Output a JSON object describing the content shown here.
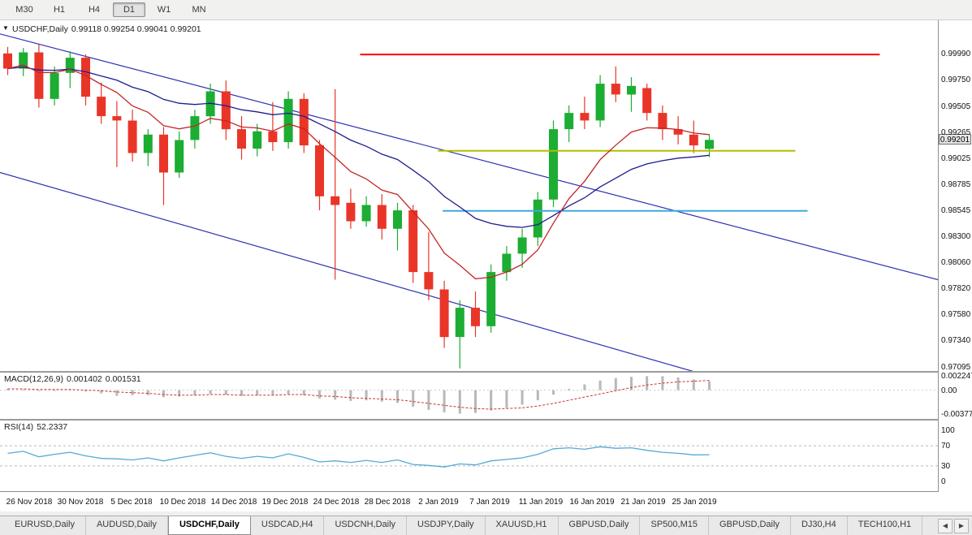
{
  "toolbar": {
    "timeframes": [
      "M30",
      "H1",
      "H4",
      "D1",
      "W1",
      "MN"
    ],
    "active": "D1"
  },
  "panes": {
    "price": {
      "collapse_icon": "▼",
      "title_symbol": "USDCHF,Daily",
      "title_ohlc": "0.99118 0.99254 0.99041 0.99201"
    },
    "macd": {
      "label": "MACD(12,26,9)",
      "value_main": "0.001402",
      "value_signal": "0.001531"
    },
    "rsi": {
      "label": "RSI(14)",
      "value": "52.2337"
    }
  },
  "price_axis": {
    "labels": [
      "0.99990",
      "0.99750",
      "0.99505",
      "0.99265",
      "0.99025",
      "0.98785",
      "0.98545",
      "0.98300",
      "0.98060",
      "0.97820",
      "0.97580",
      "0.97340",
      "0.97095"
    ],
    "current": "0.99201"
  },
  "date_axis": {
    "ticks": [
      "26 Nov 2018",
      "30 Nov 2018",
      "5 Dec 2018",
      "10 Dec 2018",
      "14 Dec 2018",
      "19 Dec 2018",
      "24 Dec 2018",
      "28 Dec 2018",
      "2 Jan 2019",
      "7 Jan 2019",
      "11 Jan 2019",
      "16 Jan 2019",
      "21 Jan 2019",
      "25 Jan 2019"
    ]
  },
  "tabs": {
    "items": [
      "EURUSD,Daily",
      "AUDUSD,Daily",
      "USDCHF,Daily",
      "USDCAD,H4",
      "USDCNH,Daily",
      "USDJPY,Daily",
      "XAUUSD,H1",
      "GBPUSD,Daily",
      "SP500,M15",
      "GBPUSD,Daily",
      "DJ30,H4",
      "TECH100,H1"
    ],
    "active_index": 2,
    "scroll_left": "◀",
    "scroll_right": "▶"
  },
  "colors": {
    "candle_up": "#1cad33",
    "candle_down": "#e93528",
    "macd_bar": "#b8b8b8",
    "macd_signal": "#cc3333",
    "rsi_line": "#56a8d6",
    "trendline": "#2d32b0",
    "ma_fast": "#c22525",
    "ma_slow": "#1c1c90",
    "hline_red": "#ff0000",
    "hline_olive": "#b3bd00",
    "hline_blue": "#3fa9dc"
  },
  "chart_data": [
    {
      "type": "candlestick",
      "title": "USDCHF,Daily",
      "ohlc_current": {
        "open": "0.99118",
        "high": "0.99254",
        "low": "0.99041",
        "close": "0.99201"
      },
      "price_range": [
        0.97066,
        1.00306
      ],
      "x_tick_labels": [
        "26 Nov 2018",
        "30 Nov 2018",
        "5 Dec 2018",
        "10 Dec 2018",
        "14 Dec 2018",
        "19 Dec 2018",
        "24 Dec 2018",
        "28 Dec 2018",
        "2 Jan 2019",
        "7 Jan 2019",
        "11 Jan 2019",
        "16 Jan 2019",
        "21 Jan 2019",
        "25 Jan 2019"
      ],
      "columns": [
        "date",
        "open",
        "high",
        "low",
        "close"
      ],
      "candles": [
        [
          "26 Nov",
          1.0,
          1.0006,
          0.998,
          0.9986
        ],
        [
          "27 Nov",
          0.9986,
          1.0005,
          0.9979,
          1.0001
        ],
        [
          "28 Nov",
          1.0001,
          1.0008,
          0.995,
          0.9958
        ],
        [
          "29 Nov",
          0.9958,
          0.9988,
          0.9952,
          0.9982
        ],
        [
          "30 Nov",
          0.9982,
          1.0002,
          0.9968,
          0.9996
        ],
        [
          "3 Dec",
          0.9996,
          0.9999,
          0.9952,
          0.996
        ],
        [
          "4 Dec",
          0.996,
          0.9973,
          0.9935,
          0.9942
        ],
        [
          "5 Dec",
          0.9942,
          0.9956,
          0.9895,
          0.9938
        ],
        [
          "6 Dec",
          0.9938,
          0.9948,
          0.99,
          0.9908
        ],
        [
          "7 Dec",
          0.9908,
          0.993,
          0.9896,
          0.9925
        ],
        [
          "10 Dec",
          0.9925,
          0.9932,
          0.986,
          0.989
        ],
        [
          "11 Dec",
          0.989,
          0.9928,
          0.9885,
          0.992
        ],
        [
          "12 Dec",
          0.992,
          0.9948,
          0.9912,
          0.9942
        ],
        [
          "13 Dec",
          0.9942,
          0.9972,
          0.9935,
          0.9965
        ],
        [
          "14 Dec",
          0.9965,
          0.9975,
          0.992,
          0.993
        ],
        [
          "17 Dec",
          0.993,
          0.9942,
          0.9902,
          0.9912
        ],
        [
          "18 Dec",
          0.9912,
          0.9935,
          0.9905,
          0.9928
        ],
        [
          "19 Dec",
          0.9928,
          0.9955,
          0.991,
          0.9918
        ],
        [
          "20 Dec",
          0.9918,
          0.9965,
          0.9912,
          0.9958
        ],
        [
          "21 Dec",
          0.9958,
          0.9963,
          0.9908,
          0.9915
        ],
        [
          "24 Dec",
          0.9915,
          0.992,
          0.9855,
          0.9868
        ],
        [
          "26 Dec",
          0.9868,
          0.9967,
          0.9791,
          0.986
        ],
        [
          "27 Dec",
          0.9862,
          0.9875,
          0.9838,
          0.9845
        ],
        [
          "28 Dec",
          0.9845,
          0.9868,
          0.984,
          0.986
        ],
        [
          "31 Dec",
          0.986,
          0.987,
          0.9828,
          0.9838
        ],
        [
          "2 Jan",
          0.9838,
          0.9862,
          0.9818,
          0.9855
        ],
        [
          "3 Jan",
          0.9855,
          0.986,
          0.9788,
          0.9798
        ],
        [
          "4 Jan",
          0.9798,
          0.9835,
          0.9772,
          0.9782
        ],
        [
          "7 Jan",
          0.9782,
          0.979,
          0.9728,
          0.9738
        ],
        [
          "8 Jan",
          0.9738,
          0.9772,
          0.9709,
          0.9765
        ],
        [
          "9 Jan",
          0.9765,
          0.978,
          0.9738,
          0.9748
        ],
        [
          "10 Jan",
          0.9748,
          0.9805,
          0.9742,
          0.9798
        ],
        [
          "11 Jan",
          0.9798,
          0.9822,
          0.979,
          0.9815
        ],
        [
          "14 Jan",
          0.9815,
          0.9838,
          0.9802,
          0.983
        ],
        [
          "15 Jan",
          0.983,
          0.9872,
          0.9822,
          0.9865
        ],
        [
          "16 Jan",
          0.9865,
          0.9938,
          0.9858,
          0.993
        ],
        [
          "17 Jan",
          0.993,
          0.9952,
          0.9918,
          0.9945
        ],
        [
          "18 Jan",
          0.9945,
          0.996,
          0.993,
          0.9938
        ],
        [
          "21 Jan",
          0.9938,
          0.998,
          0.9932,
          0.9972
        ],
        [
          "22 Jan",
          0.9972,
          0.9988,
          0.9955,
          0.9962
        ],
        [
          "23 Jan",
          0.9962,
          0.9978,
          0.9946,
          0.997
        ],
        [
          "24 Jan",
          0.9968,
          0.9972,
          0.9938,
          0.9945
        ],
        [
          "25 Jan",
          0.9945,
          0.9952,
          0.992,
          0.993
        ],
        [
          "28 Jan",
          0.993,
          0.9942,
          0.9916,
          0.9925
        ],
        [
          "29 Jan",
          0.9925,
          0.9938,
          0.9908,
          0.9915
        ],
        [
          "30 Jan",
          0.99118,
          0.99254,
          0.99041,
          0.99201
        ]
      ],
      "overlays": {
        "moving_averages": [
          {
            "name": "ma-fast",
            "period": 8
          },
          {
            "name": "ma-slow",
            "period": 20
          }
        ],
        "trendlines": [
          {
            "x1": 0,
            "p1": 1.0018,
            "x2": 1,
            "p2": 0.9791
          },
          {
            "x1": 0,
            "p1": 0.989,
            "x2": 0.74,
            "p2": 0.9706
          }
        ],
        "hlines": [
          {
            "name": "resistance-red",
            "price": 0.9999,
            "from": 0.384,
            "to": 0.938
          },
          {
            "name": "support-olive",
            "price": 0.991,
            "from": 0.467,
            "to": 0.848
          },
          {
            "name": "support-blue",
            "price": 0.98545,
            "from": 0.472,
            "to": 0.861
          }
        ]
      }
    },
    {
      "type": "bar",
      "name": "MACD(12,26,9)",
      "current_main": "0.001402",
      "current_signal": "0.001531",
      "scale_max": 0.00276,
      "scale_min": -0.00454,
      "axis_labels": [
        "0.002247",
        "0.00",
        "-0.003776"
      ],
      "values": [
        0.0002,
        0.0001,
        0.0,
        -0.0001,
        0.0001,
        -0.0002,
        -0.0005,
        -0.0009,
        -0.0008,
        -0.0008,
        -0.0011,
        -0.001,
        -0.0008,
        -0.0006,
        -0.0007,
        -0.0009,
        -0.0008,
        -0.0008,
        -0.0006,
        -0.0008,
        -0.0013,
        -0.0015,
        -0.0017,
        -0.0016,
        -0.0018,
        -0.002,
        -0.0026,
        -0.0031,
        -0.0035,
        -0.0037,
        -0.0036,
        -0.0032,
        -0.0028,
        -0.0023,
        -0.0016,
        -0.0007,
        0.0002,
        0.0009,
        0.0015,
        0.0019,
        0.0021,
        0.0022,
        0.0022,
        0.002,
        0.0017,
        0.001402
      ],
      "signal": [
        0.0002,
        0.0002,
        0.0001,
        0.0001,
        0.0001,
        0.0,
        -0.0001,
        -0.0003,
        -0.0004,
        -0.0005,
        -0.0007,
        -0.0008,
        -0.0008,
        -0.0007,
        -0.0007,
        -0.0008,
        -0.0008,
        -0.0008,
        -0.0007,
        -0.0007,
        -0.0009,
        -0.001,
        -0.0012,
        -0.0013,
        -0.0014,
        -0.0015,
        -0.0018,
        -0.0021,
        -0.0024,
        -0.0027,
        -0.0029,
        -0.003,
        -0.0029,
        -0.0028,
        -0.0025,
        -0.0021,
        -0.0016,
        -0.0011,
        -0.0006,
        -0.0001,
        0.0004,
        0.0008,
        0.0011,
        0.0013,
        0.0014,
        0.001531
      ]
    },
    {
      "type": "line",
      "name": "RSI(14)",
      "current": "52.2337",
      "range_max": 120,
      "range_min": -20,
      "levels": [
        "100",
        "70",
        "30",
        "0"
      ],
      "dashed_levels": [
        70,
        30
      ],
      "values": [
        55,
        59,
        48,
        53,
        57,
        50,
        45,
        44,
        42,
        46,
        40,
        46,
        51,
        56,
        49,
        45,
        49,
        46,
        54,
        47,
        38,
        40,
        37,
        41,
        37,
        42,
        33,
        31,
        28,
        34,
        32,
        40,
        43,
        46,
        53,
        64,
        66,
        63,
        68,
        65,
        66,
        61,
        57,
        55,
        52,
        52.23
      ]
    }
  ]
}
